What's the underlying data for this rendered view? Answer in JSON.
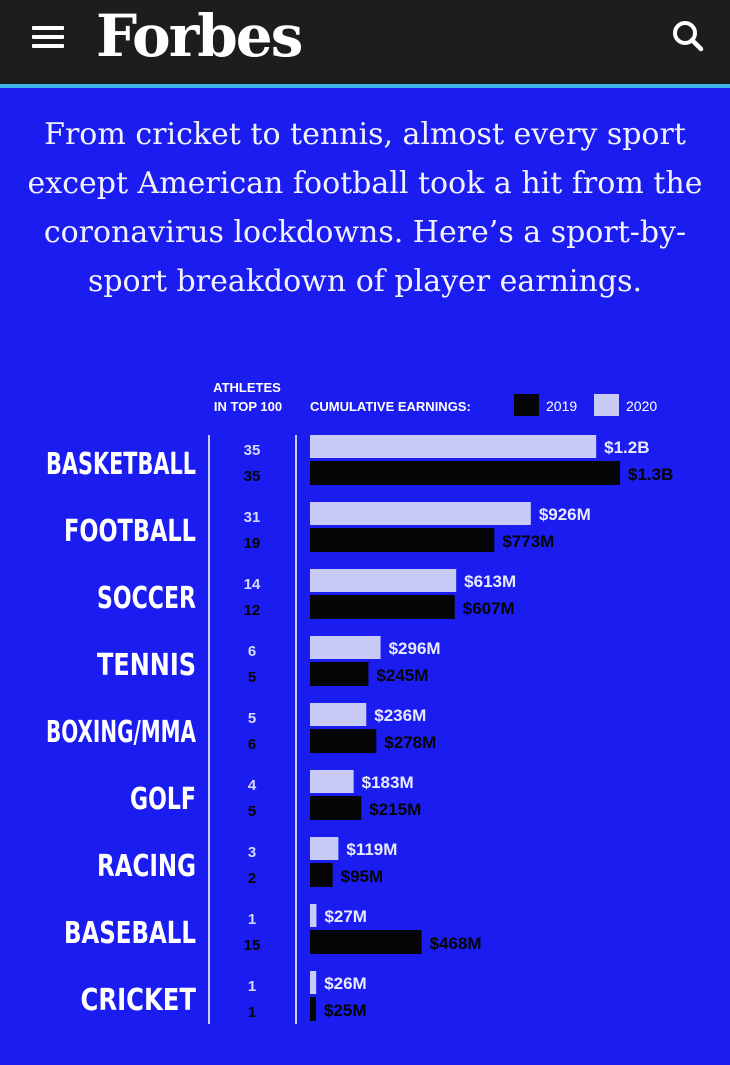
{
  "header": {
    "logo": "Forbes",
    "menu_icon": "hamburger-menu-icon",
    "search_icon": "search-icon"
  },
  "intro": {
    "text": "From cricket to tennis, almost every sport except American football took a hit from the coronavirus lockdowns. Here’s a sport-by-sport breakdown of player earnings."
  },
  "colors": {
    "page_bg": "#1b1df0",
    "topbar_bg": "#1d1d1d",
    "accent_line": "#3fb4e8",
    "bar_2020": "#c9cbf7",
    "bar_2019": "#050505"
  },
  "chart_data": {
    "type": "bar",
    "orientation": "horizontal",
    "athletes_header_line1": "ATHLETES",
    "athletes_header_line2": "IN TOP 100",
    "earnings_header": "CUMULATIVE EARNINGS:",
    "legend_placement": "top-right",
    "categories": [
      "BASKETBALL",
      "FOOTBALL",
      "SOCCER",
      "TENNIS",
      "BOXING/MMA",
      "GOLF",
      "RACING",
      "BASEBALL",
      "CRICKET"
    ],
    "athletes_2020": [
      35,
      31,
      14,
      6,
      5,
      4,
      3,
      1,
      1
    ],
    "athletes_2019": [
      35,
      19,
      12,
      5,
      6,
      5,
      2,
      15,
      1
    ],
    "series": [
      {
        "name": "2020",
        "color": "#c9cbf7",
        "values": [
          1200,
          926,
          613,
          296,
          236,
          183,
          119,
          27,
          26
        ],
        "labels": [
          "$1.2B",
          "$926M",
          "$613M",
          "$296M",
          "$236M",
          "$183M",
          "$119M",
          "$27M",
          "$26M"
        ]
      },
      {
        "name": "2019",
        "color": "#050505",
        "values": [
          1300,
          773,
          607,
          245,
          278,
          215,
          95,
          468,
          25
        ],
        "labels": [
          "$1.3B",
          "$773M",
          "$607M",
          "$245M",
          "$278M",
          "$215M",
          "$95M",
          "$468M",
          "$25M"
        ]
      }
    ],
    "unit": "$M",
    "xlim": [
      0,
      1300
    ],
    "grid": false
  }
}
